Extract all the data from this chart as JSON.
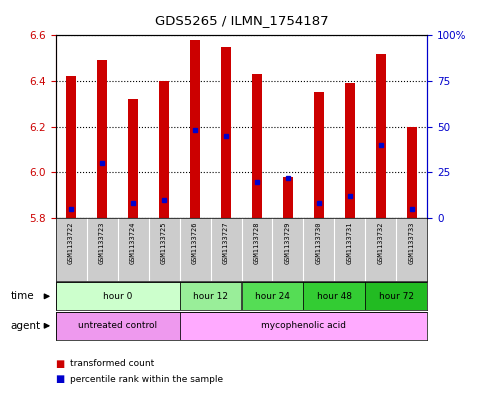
{
  "title": "GDS5265 / ILMN_1754187",
  "samples": [
    "GSM1133722",
    "GSM1133723",
    "GSM1133724",
    "GSM1133725",
    "GSM1133726",
    "GSM1133727",
    "GSM1133728",
    "GSM1133729",
    "GSM1133730",
    "GSM1133731",
    "GSM1133732",
    "GSM1133733"
  ],
  "bar_bottom": 5.8,
  "transformed_counts": [
    6.42,
    6.49,
    6.32,
    6.4,
    6.58,
    6.55,
    6.43,
    5.98,
    6.35,
    6.39,
    6.52,
    6.2
  ],
  "percentile_ranks": [
    5,
    30,
    8,
    10,
    48,
    45,
    20,
    22,
    8,
    12,
    40,
    5
  ],
  "ylim_left": [
    5.8,
    6.6
  ],
  "ylim_right": [
    0,
    100
  ],
  "yticks_left": [
    5.8,
    6.0,
    6.2,
    6.4,
    6.6
  ],
  "yticks_right": [
    0,
    25,
    50,
    75,
    100
  ],
  "ytick_labels_right": [
    "0",
    "25",
    "50",
    "75",
    "100%"
  ],
  "bar_color": "#cc0000",
  "dot_color": "#0000cc",
  "time_groups": [
    {
      "label": "hour 0",
      "start": 0,
      "end": 4,
      "color": "#ccffcc"
    },
    {
      "label": "hour 12",
      "start": 4,
      "end": 6,
      "color": "#99ee99"
    },
    {
      "label": "hour 24",
      "start": 6,
      "end": 8,
      "color": "#55dd55"
    },
    {
      "label": "hour 48",
      "start": 8,
      "end": 10,
      "color": "#33cc33"
    },
    {
      "label": "hour 72",
      "start": 10,
      "end": 12,
      "color": "#22bb22"
    }
  ],
  "agent_untreated_color": "#ee99ee",
  "agent_myco_color": "#ffaaff",
  "sample_bg_color": "#cccccc",
  "axis_label_color_left": "#cc0000",
  "axis_label_color_right": "#0000cc",
  "bar_width": 0.35
}
